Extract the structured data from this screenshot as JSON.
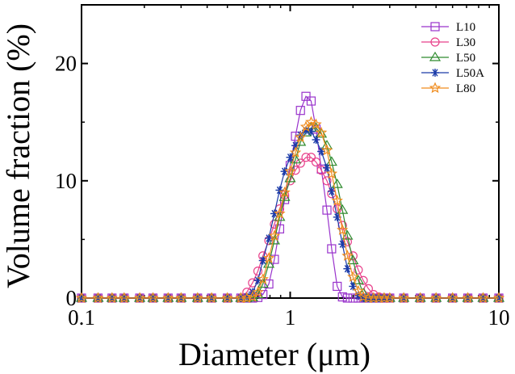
{
  "chart_data": {
    "type": "line",
    "title": "",
    "xlabel": "Diameter (μm)",
    "ylabel": "Volume fraction (%)",
    "xscale": "log",
    "xlim": [
      0.1,
      10
    ],
    "ylim": [
      0,
      25
    ],
    "x_ticks": [
      0.1,
      1,
      10
    ],
    "x_tick_labels": [
      "0.1",
      "1",
      "10"
    ],
    "y_ticks": [
      0,
      10,
      20
    ],
    "y_tick_labels": [
      "0",
      "10",
      "20"
    ],
    "grid": false,
    "legend_position": "top-right",
    "x": [
      0.1,
      0.12,
      0.14,
      0.16,
      0.19,
      0.22,
      0.26,
      0.3,
      0.36,
      0.42,
      0.5,
      0.58,
      0.62,
      0.66,
      0.7,
      0.74,
      0.79,
      0.84,
      0.89,
      0.94,
      1.0,
      1.06,
      1.12,
      1.19,
      1.26,
      1.33,
      1.41,
      1.5,
      1.58,
      1.68,
      1.78,
      1.88,
      2.0,
      2.12,
      2.24,
      2.37,
      2.51,
      2.66,
      2.82,
      3.0,
      3.5,
      4.2,
      5.0,
      6.0,
      7.1,
      8.4,
      10.0
    ],
    "series": [
      {
        "name": "L10",
        "color": "#9933cc",
        "marker": "square",
        "values": [
          0,
          0,
          0,
          0,
          0,
          0,
          0,
          0,
          0,
          0,
          0,
          0,
          0,
          0,
          0.05,
          0.3,
          1.2,
          3.3,
          5.9,
          8.4,
          11.3,
          13.8,
          16.0,
          17.2,
          16.8,
          14.4,
          11.0,
          7.5,
          4.2,
          1.0,
          0.1,
          0,
          0,
          0,
          0,
          0,
          0,
          0,
          0,
          0,
          0,
          0,
          0,
          0,
          0,
          0,
          0
        ]
      },
      {
        "name": "L30",
        "color": "#e8408a",
        "marker": "circle",
        "values": [
          0,
          0,
          0,
          0,
          0,
          0,
          0,
          0,
          0,
          0,
          0,
          0,
          0.5,
          1.3,
          2.3,
          3.6,
          4.9,
          6.3,
          7.6,
          8.8,
          10.0,
          10.9,
          11.5,
          12.0,
          12.0,
          11.6,
          10.9,
          10.0,
          8.9,
          7.6,
          6.2,
          4.8,
          3.6,
          2.4,
          1.5,
          0.8,
          0.3,
          0.1,
          0,
          0,
          0,
          0,
          0,
          0,
          0,
          0,
          0
        ]
      },
      {
        "name": "L50",
        "color": "#2e8b2e",
        "marker": "triangle",
        "values": [
          0,
          0,
          0,
          0,
          0,
          0,
          0,
          0,
          0,
          0,
          0,
          0,
          0,
          0.05,
          0.3,
          1.2,
          2.9,
          4.9,
          6.9,
          8.6,
          10.2,
          11.8,
          13.3,
          14.1,
          14.5,
          14.5,
          14.0,
          13.0,
          11.6,
          9.7,
          7.5,
          5.3,
          3.2,
          1.5,
          0.4,
          0,
          0,
          0,
          0,
          0,
          0,
          0,
          0,
          0,
          0,
          0,
          0
        ]
      },
      {
        "name": "L50A",
        "color": "#1a3aa8",
        "marker": "asterisk",
        "values": [
          0,
          0,
          0,
          0,
          0,
          0,
          0,
          0,
          0,
          0,
          0,
          0,
          0.1,
          0.5,
          1.5,
          3.2,
          5.1,
          7.2,
          9.2,
          10.8,
          12.0,
          13.0,
          13.9,
          14.3,
          14.2,
          13.5,
          12.5,
          11.1,
          9.1,
          6.9,
          4.6,
          2.5,
          1.0,
          0.2,
          0,
          0,
          0,
          0,
          0,
          0,
          0,
          0,
          0,
          0,
          0,
          0,
          0
        ]
      },
      {
        "name": "L80",
        "color": "#f08c1e",
        "marker": "star",
        "values": [
          0,
          0,
          0,
          0,
          0,
          0,
          0,
          0,
          0,
          0,
          0,
          0,
          0,
          0.1,
          0.5,
          1.6,
          3.4,
          5.3,
          7.2,
          9.0,
          10.8,
          12.4,
          13.7,
          14.6,
          15.0,
          14.8,
          14.1,
          12.6,
          10.6,
          8.3,
          5.8,
          3.6,
          1.8,
          0.6,
          0.1,
          0,
          0,
          0,
          0,
          0,
          0,
          0,
          0,
          0,
          0,
          0,
          0
        ]
      }
    ]
  }
}
